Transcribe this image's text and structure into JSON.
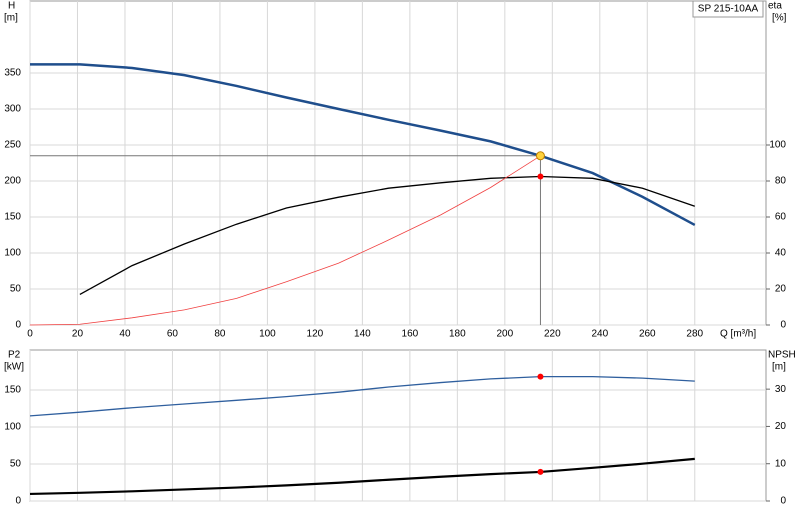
{
  "chart_data": [
    {
      "type": "line",
      "product": "SP 215-10AA",
      "y_label": "H",
      "y_unit": "[m]",
      "y2_label": "eta",
      "y2_unit": "[%]",
      "x_label": "Q [m³/h]",
      "x": [
        0,
        21,
        43,
        65,
        87,
        108,
        130,
        151,
        173,
        194,
        215,
        237,
        258,
        280
      ],
      "xlim": [
        0,
        310
      ],
      "xticks": [
        0,
        20,
        40,
        60,
        80,
        100,
        120,
        140,
        160,
        180,
        200,
        220,
        240,
        260,
        280
      ],
      "ylim": [
        0,
        450
      ],
      "yticks": [
        0,
        50,
        100,
        150,
        200,
        250,
        300,
        350
      ],
      "y2lim": [
        0,
        180
      ],
      "y2ticks": [
        0,
        20,
        40,
        60,
        80,
        100
      ],
      "grid": true,
      "series": [
        {
          "color": "#1f4e8c",
          "width": 2.5,
          "values": [
            362,
            362,
            357,
            347,
            332,
            316,
            300,
            285,
            270,
            255,
            235,
            211,
            178,
            139
          ]
        },
        {
          "color": "#000000",
          "width": 1.3,
          "axis": "y2",
          "values": [
            null,
            17,
            33,
            45,
            56,
            65,
            71,
            76,
            79,
            81.5,
            82.5,
            81.5,
            76,
            66
          ]
        },
        {
          "color": "#f04040",
          "width": 0.8,
          "values": [
            0,
            1,
            10,
            21,
            37,
            60,
            86,
            118,
            153,
            191,
            235,
            null,
            null,
            null
          ]
        }
      ]
    },
    {
      "type": "line",
      "y_label": "P2",
      "y_unit": "[kW]",
      "y2_label": "NPSH",
      "y2_unit": "[m]",
      "x": [
        0,
        21,
        43,
        65,
        87,
        108,
        130,
        151,
        173,
        194,
        215,
        237,
        258,
        280
      ],
      "xlim": [
        0,
        310
      ],
      "xticks": [
        0,
        20,
        40,
        60,
        80,
        100,
        120,
        140,
        160,
        180,
        200,
        220,
        240,
        260,
        280
      ],
      "ylim": [
        0,
        204
      ],
      "yticks": [
        0,
        50,
        100,
        150
      ],
      "y2lim": [
        0,
        40.5
      ],
      "y2ticks": [
        0,
        10,
        20,
        30
      ],
      "grid": true,
      "series": [
        {
          "color": "#2f5f9e",
          "width": 1.3,
          "values": [
            115,
            120,
            126,
            131,
            136,
            141,
            147,
            154,
            160,
            165,
            168,
            168,
            166,
            162
          ]
        },
        {
          "color": "#000000",
          "width": 2.2,
          "axis": "y2",
          "values": [
            1.9,
            2.2,
            2.6,
            3.1,
            3.6,
            4.2,
            4.9,
            5.7,
            6.5,
            7.2,
            7.8,
            8.9,
            10,
            11.3
          ]
        }
      ]
    }
  ]
}
